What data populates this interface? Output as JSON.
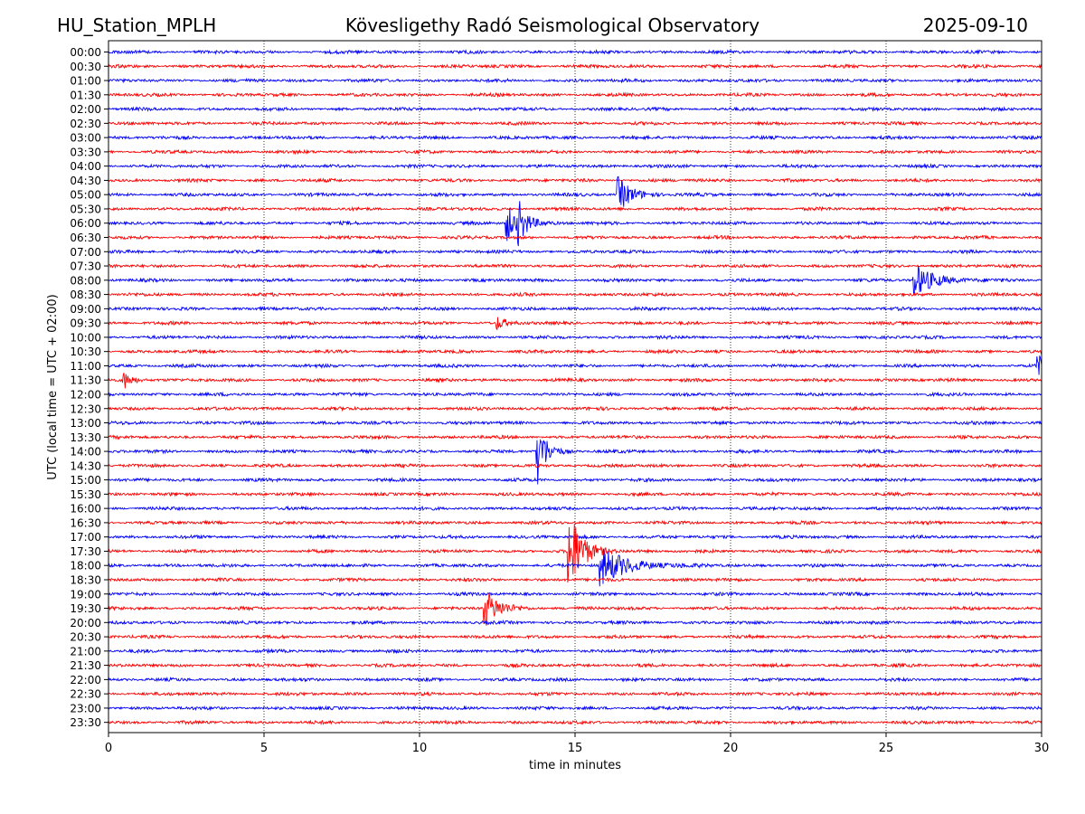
{
  "header": {
    "station": "HU_Station_MPLH",
    "observatory": "Kövesligethy Radó Seismological Observatory",
    "date": "2025-09-10"
  },
  "chart_data": {
    "type": "line",
    "subtype": "helicorder",
    "xlabel": "time in minutes",
    "ylabel": "UTC (local time = UTC + 02:00)",
    "xlim": [
      0,
      30
    ],
    "xticks": [
      "0",
      "5",
      "10",
      "15",
      "20",
      "25",
      "30"
    ],
    "grid": "vertical dotted lines at each x tick",
    "row_interval_minutes": 30,
    "row_labels": [
      "00:00",
      "00:30",
      "01:00",
      "01:30",
      "02:00",
      "02:30",
      "03:00",
      "03:30",
      "04:00",
      "04:30",
      "05:00",
      "05:30",
      "06:00",
      "06:30",
      "07:00",
      "07:30",
      "08:00",
      "08:30",
      "09:00",
      "09:30",
      "10:00",
      "10:30",
      "11:00",
      "11:30",
      "12:00",
      "12:30",
      "13:00",
      "13:30",
      "14:00",
      "14:30",
      "15:00",
      "15:30",
      "16:00",
      "16:30",
      "17:00",
      "17:30",
      "18:00",
      "18:30",
      "19:00",
      "19:30",
      "20:00",
      "20:30",
      "21:00",
      "21:30",
      "22:00",
      "22:30",
      "23:00",
      "23:30"
    ],
    "trace_colors": [
      "#0000ff",
      "#ff0000"
    ],
    "events": [
      {
        "row": "05:00",
        "minute": 16.4,
        "amplitude": 1.4,
        "duration": 0.9
      },
      {
        "row": "06:00",
        "minute": 12.8,
        "amplitude": 1.5,
        "duration": 0.9
      },
      {
        "row": "06:00",
        "minute": 13.2,
        "amplitude": 1.3,
        "duration": 0.5
      },
      {
        "row": "08:00",
        "minute": 25.9,
        "amplitude": 1.4,
        "duration": 1.3
      },
      {
        "row": "09:30",
        "minute": 12.5,
        "amplitude": 0.5,
        "duration": 0.6
      },
      {
        "row": "11:00",
        "minute": 29.9,
        "amplitude": 1.0,
        "duration": 0.3
      },
      {
        "row": "11:30",
        "minute": 0.5,
        "amplitude": 0.7,
        "duration": 0.6
      },
      {
        "row": "14:00",
        "minute": 13.8,
        "amplitude": 2.6,
        "duration": 0.6
      },
      {
        "row": "17:30",
        "minute": 14.8,
        "amplitude": 3.5,
        "duration": 0.9
      },
      {
        "row": "18:00",
        "minute": 15.8,
        "amplitude": 1.6,
        "duration": 1.8
      },
      {
        "row": "19:30",
        "minute": 12.1,
        "amplitude": 1.6,
        "duration": 0.9
      }
    ]
  }
}
